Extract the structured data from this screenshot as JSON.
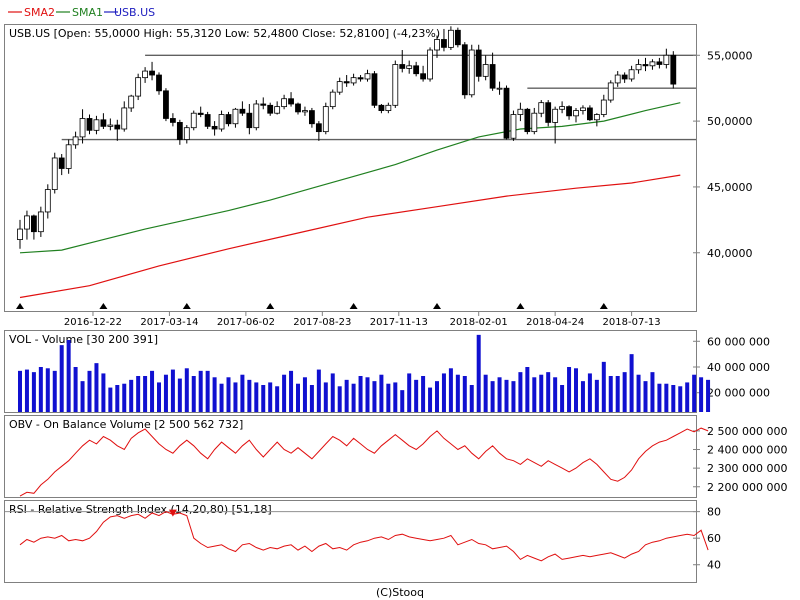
{
  "legend": [
    {
      "name": "SMA2",
      "color": "#e01010"
    },
    {
      "name": "SMA1",
      "color": "#208020"
    },
    {
      "name": "USB.US",
      "color": "#2020c0"
    }
  ],
  "footer": "(C)Stooq",
  "chart_data": [
    {
      "type": "candlestick",
      "title": "USB.US [Open: 55,0000  High: 55,3120  Low: 52,4800  Close: 52,8100] (-4,23%)",
      "ylim": [
        35.5,
        57.3
      ],
      "yticks": [
        40,
        45,
        50,
        55
      ],
      "ytick_labels": [
        "40,0000",
        "45,0000",
        "50,0000",
        "55,0000"
      ],
      "xlim": [
        0,
        95
      ],
      "x_tick_labels": [
        {
          "i": 10.5,
          "label": "2016-12-22"
        },
        {
          "i": 21.5,
          "label": "2017-03-14"
        },
        {
          "i": 32.5,
          "label": "2017-06-02"
        },
        {
          "i": 43.5,
          "label": "2017-08-23"
        },
        {
          "i": 54.5,
          "label": "2017-11-13"
        },
        {
          "i": 66,
          "label": "2018-02-01"
        },
        {
          "i": 77,
          "label": "2018-04-24"
        },
        {
          "i": 88,
          "label": "2018-07-13"
        }
      ],
      "markers": [
        0,
        12,
        24,
        36,
        48,
        60,
        72,
        84
      ],
      "hlines": [
        {
          "y": 55.0,
          "from": 18,
          "to": 99
        },
        {
          "y": 48.6,
          "from": 6,
          "to": 99
        },
        {
          "y": 52.5,
          "from": 73,
          "to": 99
        }
      ],
      "candles": [
        [
          41.0,
          42.5,
          40.3,
          41.8
        ],
        [
          41.8,
          43.2,
          41.0,
          42.8
        ],
        [
          42.8,
          42.9,
          41.0,
          41.6
        ],
        [
          41.6,
          43.5,
          41.2,
          43.1
        ],
        [
          43.1,
          45.2,
          42.6,
          44.8
        ],
        [
          44.8,
          47.6,
          44.5,
          47.2
        ],
        [
          47.2,
          47.5,
          45.9,
          46.4
        ],
        [
          46.4,
          48.6,
          46.0,
          48.2
        ],
        [
          48.2,
          49.2,
          47.9,
          48.8
        ],
        [
          48.8,
          50.9,
          48.3,
          50.2
        ],
        [
          50.2,
          50.5,
          49.0,
          49.3
        ],
        [
          49.3,
          50.4,
          49.0,
          50.1
        ],
        [
          50.1,
          50.6,
          49.4,
          49.6
        ],
        [
          49.6,
          50.2,
          49.3,
          49.7
        ],
        [
          49.7,
          50.1,
          48.5,
          49.4
        ],
        [
          49.4,
          51.5,
          49.2,
          51.0
        ],
        [
          51.0,
          52.0,
          50.7,
          51.9
        ],
        [
          51.9,
          53.6,
          51.6,
          53.3
        ],
        [
          53.3,
          54.1,
          52.9,
          53.8
        ],
        [
          53.8,
          54.5,
          53.1,
          53.5
        ],
        [
          53.5,
          53.7,
          52.0,
          52.3
        ],
        [
          52.3,
          52.5,
          50.0,
          50.2
        ],
        [
          50.2,
          50.6,
          49.6,
          49.9
        ],
        [
          49.9,
          50.1,
          48.2,
          48.6
        ],
        [
          48.6,
          49.7,
          48.3,
          49.5
        ],
        [
          49.5,
          50.8,
          49.3,
          50.6
        ],
        [
          50.6,
          51.1,
          50.3,
          50.5
        ],
        [
          50.5,
          50.7,
          49.4,
          49.6
        ],
        [
          49.6,
          50.0,
          48.9,
          49.4
        ],
        [
          49.4,
          50.8,
          49.2,
          50.5
        ],
        [
          50.5,
          50.7,
          49.6,
          49.8
        ],
        [
          49.8,
          51.0,
          49.5,
          50.9
        ],
        [
          50.9,
          51.5,
          50.4,
          50.6
        ],
        [
          50.6,
          51.3,
          49.0,
          49.5
        ],
        [
          49.5,
          51.6,
          49.3,
          51.3
        ],
        [
          51.3,
          51.8,
          50.9,
          51.2
        ],
        [
          51.2,
          51.4,
          50.4,
          50.6
        ],
        [
          50.6,
          51.5,
          50.5,
          51.1
        ],
        [
          51.1,
          52.0,
          50.9,
          51.7
        ],
        [
          51.7,
          52.2,
          51.1,
          51.3
        ],
        [
          51.3,
          51.4,
          50.5,
          50.7
        ],
        [
          50.7,
          51.1,
          50.4,
          50.8
        ],
        [
          50.8,
          51.0,
          49.5,
          49.8
        ],
        [
          49.8,
          50.0,
          48.5,
          49.2
        ],
        [
          49.2,
          51.4,
          49.0,
          51.1
        ],
        [
          51.1,
          52.4,
          50.9,
          52.2
        ],
        [
          52.2,
          53.3,
          52.0,
          53.0
        ],
        [
          53.0,
          53.5,
          52.6,
          52.9
        ],
        [
          52.9,
          53.6,
          52.7,
          53.3
        ],
        [
          53.3,
          53.5,
          53.0,
          53.2
        ],
        [
          53.2,
          53.9,
          53.0,
          53.6
        ],
        [
          53.6,
          53.8,
          51.0,
          51.2
        ],
        [
          51.2,
          51.3,
          50.6,
          50.8
        ],
        [
          50.8,
          51.4,
          50.6,
          51.2
        ],
        [
          51.2,
          54.6,
          51.0,
          54.3
        ],
        [
          54.3,
          55.4,
          53.7,
          54.0
        ],
        [
          54.0,
          54.6,
          53.6,
          54.2
        ],
        [
          54.2,
          54.5,
          53.4,
          53.6
        ],
        [
          53.6,
          54.2,
          53.0,
          53.2
        ],
        [
          53.2,
          55.6,
          53.0,
          55.4
        ],
        [
          55.4,
          56.5,
          54.8,
          56.2
        ],
        [
          56.2,
          57.0,
          55.3,
          55.6
        ],
        [
          55.6,
          57.2,
          55.4,
          56.9
        ],
        [
          56.9,
          57.1,
          55.6,
          55.8
        ],
        [
          55.8,
          56.0,
          51.7,
          52.0
        ],
        [
          52.0,
          55.8,
          51.8,
          55.4
        ],
        [
          55.4,
          55.8,
          53.0,
          53.4
        ],
        [
          53.4,
          55.0,
          53.1,
          54.3
        ],
        [
          54.3,
          55.2,
          52.3,
          52.5
        ],
        [
          52.5,
          53.0,
          52.0,
          52.5
        ],
        [
          52.5,
          52.7,
          48.6,
          48.7
        ],
        [
          48.7,
          50.8,
          48.5,
          50.5
        ],
        [
          50.5,
          51.4,
          50.0,
          50.9
        ],
        [
          50.9,
          51.0,
          49.0,
          49.2
        ],
        [
          49.2,
          51.0,
          49.0,
          50.6
        ],
        [
          50.6,
          51.6,
          50.3,
          51.4
        ],
        [
          51.4,
          51.6,
          49.6,
          49.9
        ],
        [
          49.9,
          51.1,
          48.3,
          50.9
        ],
        [
          50.9,
          51.5,
          50.6,
          51.1
        ],
        [
          51.1,
          51.2,
          50.1,
          50.4
        ],
        [
          50.4,
          51.0,
          49.9,
          50.8
        ],
        [
          50.8,
          51.2,
          50.5,
          51.0
        ],
        [
          51.0,
          51.2,
          50.0,
          50.1
        ],
        [
          50.1,
          50.6,
          49.6,
          50.5
        ],
        [
          50.5,
          52.0,
          50.3,
          51.6
        ],
        [
          51.6,
          53.1,
          51.4,
          52.9
        ],
        [
          52.9,
          53.8,
          52.6,
          53.5
        ],
        [
          53.5,
          53.7,
          52.9,
          53.2
        ],
        [
          53.2,
          54.2,
          53.0,
          53.9
        ],
        [
          53.9,
          54.7,
          53.6,
          54.3
        ],
        [
          54.3,
          54.8,
          53.8,
          54.2
        ],
        [
          54.2,
          54.7,
          53.9,
          54.5
        ],
        [
          54.5,
          54.8,
          54.0,
          54.3
        ],
        [
          54.3,
          55.5,
          54.0,
          55.0
        ],
        [
          55.0,
          55.312,
          52.48,
          52.81
        ]
      ],
      "series": [
        {
          "name": "SMA1",
          "color": "#208020",
          "points": [
            [
              0,
              40.0
            ],
            [
              6,
              40.2
            ],
            [
              12,
              41.0
            ],
            [
              18,
              41.8
            ],
            [
              24,
              42.5
            ],
            [
              30,
              43.2
            ],
            [
              36,
              44.0
            ],
            [
              42,
              44.9
            ],
            [
              48,
              45.8
            ],
            [
              54,
              46.7
            ],
            [
              60,
              47.8
            ],
            [
              66,
              48.8
            ],
            [
              72,
              49.4
            ],
            [
              78,
              49.6
            ],
            [
              84,
              50.0
            ],
            [
              90,
              50.8
            ],
            [
              95,
              51.4
            ]
          ]
        },
        {
          "name": "SMA2",
          "color": "#e01010",
          "points": [
            [
              0,
              36.6
            ],
            [
              10,
              37.5
            ],
            [
              20,
              39.0
            ],
            [
              30,
              40.3
            ],
            [
              40,
              41.5
            ],
            [
              50,
              42.7
            ],
            [
              60,
              43.5
            ],
            [
              70,
              44.3
            ],
            [
              80,
              44.9
            ],
            [
              88,
              45.3
            ],
            [
              95,
              45.9
            ]
          ]
        }
      ]
    },
    {
      "type": "bar",
      "title": "VOL - Volume [30 200 391]",
      "ylim": [
        5,
        68
      ],
      "yticks": [
        20,
        40,
        60
      ],
      "ytick_labels": [
        "20 000 000",
        "40 000 000",
        "60 000 000"
      ],
      "values": [
        37,
        38,
        36,
        40,
        39,
        37,
        57,
        61,
        40,
        29,
        37,
        43,
        35,
        24,
        26,
        27,
        30,
        33,
        33,
        37,
        28,
        34,
        38,
        31,
        39,
        33,
        37,
        37,
        32,
        27,
        32,
        28,
        34,
        30,
        28,
        26,
        28,
        25,
        34,
        37,
        27,
        32,
        26,
        38,
        28,
        35,
        25,
        30,
        27,
        33,
        32,
        29,
        34,
        27,
        28,
        22,
        35,
        30,
        33,
        24,
        29,
        35,
        39,
        34,
        33,
        26,
        65,
        34,
        29,
        32,
        30,
        29,
        36,
        40,
        32,
        34,
        36,
        32,
        26,
        40,
        39,
        29,
        35,
        30,
        44,
        33,
        33,
        36,
        50,
        34,
        29,
        36,
        27,
        27,
        26,
        25,
        28,
        34,
        32,
        30
      ]
    },
    {
      "type": "line",
      "title": "OBV - On Balance Volume [2 500 562 732]",
      "ylim": [
        2145,
        2580
      ],
      "yticks": [
        2200,
        2300,
        2400,
        2500
      ],
      "ytick_labels": [
        "2 200 000 000",
        "2 300 000 000",
        "2 400 000 000",
        "2 500 000 000"
      ],
      "series": [
        {
          "name": "OBV",
          "color": "#e01010",
          "values": [
            2150,
            2170,
            2165,
            2210,
            2240,
            2280,
            2310,
            2340,
            2380,
            2420,
            2450,
            2430,
            2470,
            2450,
            2420,
            2400,
            2460,
            2490,
            2510,
            2470,
            2430,
            2400,
            2380,
            2420,
            2450,
            2420,
            2380,
            2350,
            2400,
            2440,
            2410,
            2380,
            2420,
            2450,
            2400,
            2360,
            2400,
            2440,
            2400,
            2380,
            2410,
            2380,
            2350,
            2390,
            2430,
            2470,
            2450,
            2420,
            2460,
            2430,
            2400,
            2380,
            2420,
            2450,
            2480,
            2450,
            2420,
            2400,
            2430,
            2470,
            2500,
            2460,
            2430,
            2400,
            2420,
            2380,
            2350,
            2390,
            2420,
            2380,
            2350,
            2340,
            2320,
            2350,
            2330,
            2310,
            2340,
            2320,
            2300,
            2280,
            2300,
            2330,
            2350,
            2320,
            2280,
            2240,
            2230,
            2250,
            2290,
            2350,
            2390,
            2420,
            2440,
            2450,
            2470,
            2490,
            2510,
            2495,
            2515,
            2500
          ]
        }
      ]
    },
    {
      "type": "line",
      "title": "RSI - Relative Strength Index (14,20,80) [51,18]",
      "ylim": [
        27,
        88
      ],
      "yticks": [
        40,
        60,
        80
      ],
      "ytick_labels": [
        "40",
        "60",
        "80"
      ],
      "reference_lines": [
        20,
        80
      ],
      "signal_point": {
        "i": 22,
        "y": 80
      },
      "series": [
        {
          "name": "RSI",
          "color": "#e01010",
          "values": [
            55,
            59,
            57,
            60,
            61,
            60,
            62,
            58,
            59,
            58,
            60,
            65,
            72,
            76,
            77,
            75,
            77,
            78,
            75,
            79,
            77,
            80,
            78,
            79,
            77,
            60,
            56,
            53,
            54,
            55,
            52,
            50,
            55,
            56,
            53,
            51,
            53,
            52,
            54,
            55,
            51,
            54,
            50,
            54,
            56,
            52,
            53,
            51,
            55,
            57,
            58,
            60,
            61,
            59,
            62,
            63,
            61,
            60,
            59,
            58,
            59,
            60,
            62,
            55,
            57,
            59,
            56,
            55,
            52,
            53,
            54,
            50,
            44,
            47,
            45,
            43,
            46,
            48,
            44,
            45,
            46,
            47,
            46,
            47,
            48,
            49,
            47,
            45,
            48,
            50,
            55,
            57,
            58,
            60,
            61,
            62,
            63,
            62,
            66,
            51
          ]
        }
      ]
    }
  ]
}
